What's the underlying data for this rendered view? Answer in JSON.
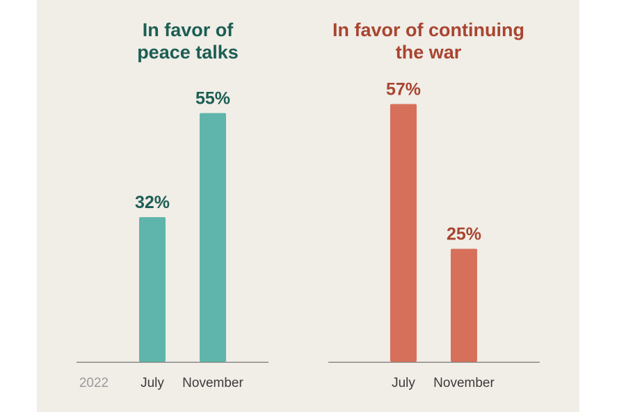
{
  "colors": {
    "panel_background": "#f1ede7",
    "peace_bar": "#5fb5ab",
    "peace_text": "#1c5e53",
    "war_bar": "#d6705a",
    "war_text": "#a84530",
    "axis": "#777777"
  },
  "chart_data": [
    {
      "type": "bar",
      "title_lines": [
        "In favor of",
        "peace talks"
      ],
      "year_label": "2022",
      "categories": [
        "July",
        "November"
      ],
      "values": [
        32,
        55
      ],
      "value_labels": [
        "32%",
        "55%"
      ],
      "unit": "%",
      "ylim": [
        0,
        100
      ],
      "grid": false,
      "legend": "none",
      "bar_color": "#5fb5ab",
      "text_color": "#1c5e53"
    },
    {
      "type": "bar",
      "title_lines": [
        "In favor of continuing",
        "the war"
      ],
      "categories": [
        "July",
        "November"
      ],
      "values": [
        57,
        25
      ],
      "value_labels": [
        "57%",
        "25%"
      ],
      "unit": "%",
      "ylim": [
        0,
        100
      ],
      "grid": false,
      "legend": "none",
      "bar_color": "#d6705a",
      "text_color": "#a84530"
    }
  ]
}
